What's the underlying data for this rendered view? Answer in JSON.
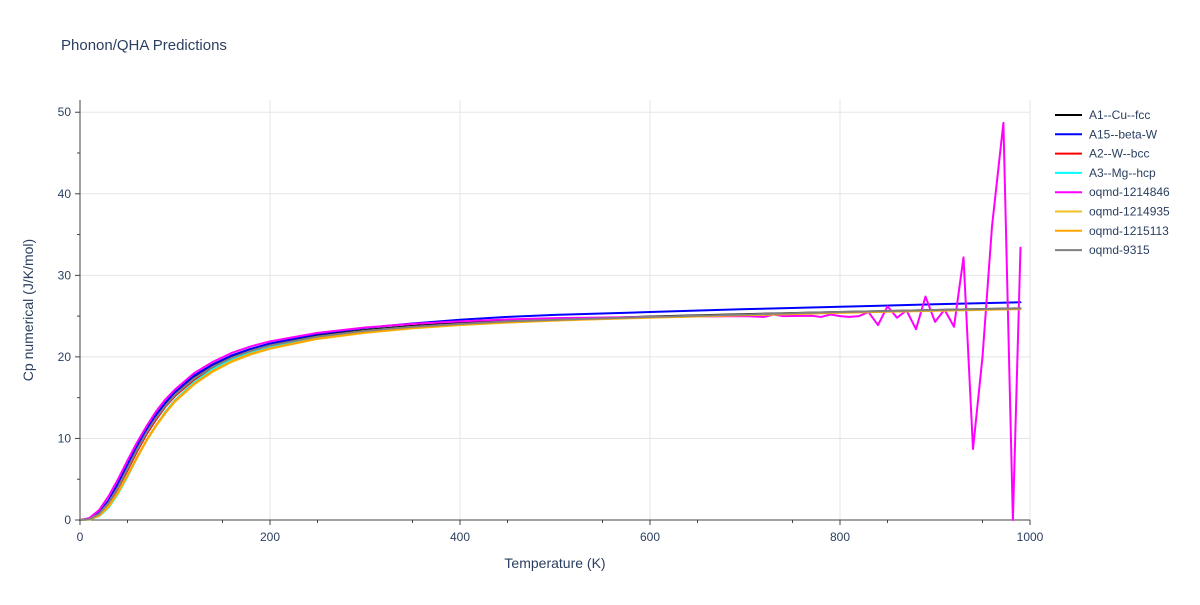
{
  "chart_data": {
    "type": "line",
    "title": "Phonon/QHA Predictions",
    "xlabel": "Temperature (K)",
    "ylabel": "Cp numerical (J/K/mol)",
    "xlim": [
      0,
      1000
    ],
    "ylim": [
      0,
      51.5
    ],
    "x_ticks": [
      0,
      200,
      400,
      600,
      800,
      1000
    ],
    "y_ticks": [
      0,
      10,
      20,
      30,
      40,
      50
    ],
    "grid": true,
    "legend_position": "right",
    "series": [
      {
        "name": "A1--Cu--fcc",
        "color": "#000000",
        "points": [
          [
            0,
            0
          ],
          [
            10,
            0.12
          ],
          [
            20,
            0.8
          ],
          [
            30,
            2.2
          ],
          [
            40,
            4.2
          ],
          [
            50,
            6.5
          ],
          [
            60,
            8.8
          ],
          [
            70,
            10.9
          ],
          [
            80,
            12.7
          ],
          [
            90,
            14.2
          ],
          [
            100,
            15.5
          ],
          [
            120,
            17.5
          ],
          [
            140,
            18.9
          ],
          [
            160,
            20.0
          ],
          [
            180,
            20.85
          ],
          [
            200,
            21.5
          ],
          [
            250,
            22.6
          ],
          [
            300,
            23.3
          ],
          [
            350,
            23.8
          ],
          [
            400,
            24.15
          ],
          [
            450,
            24.4
          ],
          [
            500,
            24.6
          ],
          [
            600,
            24.95
          ],
          [
            700,
            25.25
          ],
          [
            800,
            25.5
          ],
          [
            900,
            25.75
          ],
          [
            990,
            25.95
          ]
        ]
      },
      {
        "name": "A15--beta-W",
        "color": "#0000ff",
        "points": [
          [
            0,
            0
          ],
          [
            10,
            0.15
          ],
          [
            20,
            0.9
          ],
          [
            30,
            2.4
          ],
          [
            40,
            4.5
          ],
          [
            50,
            6.8
          ],
          [
            60,
            9.1
          ],
          [
            70,
            11.1
          ],
          [
            80,
            12.9
          ],
          [
            90,
            14.4
          ],
          [
            100,
            15.7
          ],
          [
            120,
            17.7
          ],
          [
            140,
            19.1
          ],
          [
            160,
            20.2
          ],
          [
            180,
            21.0
          ],
          [
            200,
            21.65
          ],
          [
            250,
            22.8
          ],
          [
            300,
            23.55
          ],
          [
            350,
            24.1
          ],
          [
            400,
            24.55
          ],
          [
            450,
            24.9
          ],
          [
            500,
            25.15
          ],
          [
            600,
            25.5
          ],
          [
            700,
            25.85
          ],
          [
            800,
            26.15
          ],
          [
            900,
            26.45
          ],
          [
            990,
            26.7
          ]
        ]
      },
      {
        "name": "A2--W--bcc",
        "color": "#ff0000",
        "points": [
          [
            0,
            0
          ],
          [
            10,
            0.1
          ],
          [
            20,
            0.7
          ],
          [
            30,
            2.0
          ],
          [
            40,
            3.9
          ],
          [
            50,
            6.1
          ],
          [
            60,
            8.4
          ],
          [
            70,
            10.5
          ],
          [
            80,
            12.3
          ],
          [
            90,
            13.9
          ],
          [
            100,
            15.2
          ],
          [
            120,
            17.2
          ],
          [
            140,
            18.7
          ],
          [
            160,
            19.8
          ],
          [
            180,
            20.65
          ],
          [
            200,
            21.3
          ],
          [
            250,
            22.4
          ],
          [
            300,
            23.1
          ],
          [
            350,
            23.6
          ],
          [
            400,
            23.95
          ],
          [
            450,
            24.25
          ],
          [
            500,
            24.5
          ],
          [
            600,
            24.85
          ],
          [
            700,
            25.15
          ],
          [
            800,
            25.45
          ],
          [
            900,
            25.7
          ],
          [
            990,
            25.9
          ]
        ]
      },
      {
        "name": "A3--Mg--hcp",
        "color": "#00ffff",
        "points": [
          [
            0,
            0
          ],
          [
            10,
            0.05
          ],
          [
            20,
            0.45
          ],
          [
            30,
            1.5
          ],
          [
            40,
            3.2
          ],
          [
            50,
            5.3
          ],
          [
            60,
            7.6
          ],
          [
            70,
            9.7
          ],
          [
            80,
            11.6
          ],
          [
            90,
            13.3
          ],
          [
            100,
            14.7
          ],
          [
            120,
            16.9
          ],
          [
            140,
            18.5
          ],
          [
            160,
            19.7
          ],
          [
            180,
            20.55
          ],
          [
            200,
            21.25
          ],
          [
            250,
            22.4
          ],
          [
            300,
            23.1
          ],
          [
            350,
            23.6
          ],
          [
            400,
            24.0
          ],
          [
            450,
            24.3
          ],
          [
            500,
            24.5
          ],
          [
            600,
            24.85
          ],
          [
            700,
            25.15
          ],
          [
            800,
            25.45
          ],
          [
            900,
            25.7
          ],
          [
            990,
            25.9
          ]
        ]
      },
      {
        "name": "oqmd-1214846",
        "color": "#ff00ff",
        "points": [
          [
            0,
            0
          ],
          [
            10,
            0.25
          ],
          [
            20,
            1.2
          ],
          [
            30,
            2.9
          ],
          [
            40,
            5.0
          ],
          [
            50,
            7.3
          ],
          [
            60,
            9.5
          ],
          [
            70,
            11.5
          ],
          [
            80,
            13.3
          ],
          [
            90,
            14.8
          ],
          [
            100,
            16.0
          ],
          [
            120,
            18.0
          ],
          [
            140,
            19.4
          ],
          [
            160,
            20.5
          ],
          [
            180,
            21.3
          ],
          [
            200,
            21.9
          ],
          [
            250,
            22.95
          ],
          [
            300,
            23.6
          ],
          [
            350,
            24.05
          ],
          [
            400,
            24.35
          ],
          [
            450,
            24.6
          ],
          [
            500,
            24.75
          ],
          [
            600,
            24.9
          ],
          [
            650,
            24.95
          ],
          [
            700,
            25.0
          ],
          [
            720,
            24.9
          ],
          [
            730,
            25.2
          ],
          [
            740,
            25.0
          ],
          [
            770,
            25.05
          ],
          [
            780,
            24.9
          ],
          [
            790,
            25.2
          ],
          [
            800,
            25.0
          ],
          [
            810,
            24.9
          ],
          [
            820,
            25.0
          ],
          [
            830,
            25.5
          ],
          [
            840,
            23.9
          ],
          [
            850,
            26.2
          ],
          [
            860,
            24.8
          ],
          [
            870,
            25.7
          ],
          [
            880,
            23.4
          ],
          [
            890,
            27.4
          ],
          [
            900,
            24.3
          ],
          [
            910,
            25.8
          ],
          [
            920,
            23.7
          ],
          [
            930,
            32.2
          ],
          [
            940,
            8.7
          ],
          [
            950,
            20.0
          ],
          [
            960,
            36.0
          ],
          [
            972,
            48.7
          ],
          [
            982,
            0.0
          ],
          [
            990,
            33.4
          ]
        ]
      },
      {
        "name": "oqmd-1214935",
        "color": "#f0c020",
        "points": [
          [
            0,
            0
          ],
          [
            10,
            0.06
          ],
          [
            20,
            0.5
          ],
          [
            30,
            1.6
          ],
          [
            40,
            3.3
          ],
          [
            50,
            5.4
          ],
          [
            60,
            7.6
          ],
          [
            70,
            9.7
          ],
          [
            80,
            11.5
          ],
          [
            90,
            13.1
          ],
          [
            100,
            14.5
          ],
          [
            120,
            16.6
          ],
          [
            140,
            18.2
          ],
          [
            160,
            19.4
          ],
          [
            180,
            20.3
          ],
          [
            200,
            21.0
          ],
          [
            250,
            22.2
          ],
          [
            300,
            22.95
          ],
          [
            350,
            23.5
          ],
          [
            400,
            23.9
          ],
          [
            450,
            24.2
          ],
          [
            500,
            24.45
          ],
          [
            600,
            24.8
          ],
          [
            700,
            25.1
          ],
          [
            800,
            25.4
          ],
          [
            900,
            25.65
          ],
          [
            990,
            25.85
          ]
        ]
      },
      {
        "name": "oqmd-1215113",
        "color": "#ffa500",
        "points": [
          [
            0,
            0
          ],
          [
            10,
            0.07
          ],
          [
            20,
            0.55
          ],
          [
            30,
            1.7
          ],
          [
            40,
            3.4
          ],
          [
            50,
            5.5
          ],
          [
            60,
            7.7
          ],
          [
            70,
            9.8
          ],
          [
            80,
            11.6
          ],
          [
            90,
            13.2
          ],
          [
            100,
            14.6
          ],
          [
            120,
            16.7
          ],
          [
            140,
            18.3
          ],
          [
            160,
            19.5
          ],
          [
            180,
            20.4
          ],
          [
            200,
            21.05
          ],
          [
            250,
            22.25
          ],
          [
            300,
            23.0
          ],
          [
            350,
            23.55
          ],
          [
            400,
            23.95
          ],
          [
            450,
            24.25
          ],
          [
            500,
            24.5
          ],
          [
            600,
            24.85
          ],
          [
            700,
            25.15
          ],
          [
            800,
            25.45
          ],
          [
            900,
            25.7
          ],
          [
            990,
            25.9
          ]
        ]
      },
      {
        "name": "oqmd-9315",
        "color": "#808080",
        "points": [
          [
            0,
            0
          ],
          [
            10,
            0.11
          ],
          [
            20,
            0.75
          ],
          [
            30,
            2.1
          ],
          [
            40,
            4.0
          ],
          [
            50,
            6.3
          ],
          [
            60,
            8.6
          ],
          [
            70,
            10.7
          ],
          [
            80,
            12.5
          ],
          [
            90,
            14.0
          ],
          [
            100,
            15.35
          ],
          [
            120,
            17.35
          ],
          [
            140,
            18.8
          ],
          [
            160,
            19.9
          ],
          [
            180,
            20.75
          ],
          [
            200,
            21.4
          ],
          [
            250,
            22.5
          ],
          [
            300,
            23.2
          ],
          [
            350,
            23.7
          ],
          [
            400,
            24.05
          ],
          [
            450,
            24.35
          ],
          [
            500,
            24.55
          ],
          [
            600,
            24.9
          ],
          [
            700,
            25.2
          ],
          [
            800,
            25.5
          ],
          [
            900,
            25.75
          ],
          [
            990,
            25.95
          ]
        ]
      }
    ]
  }
}
